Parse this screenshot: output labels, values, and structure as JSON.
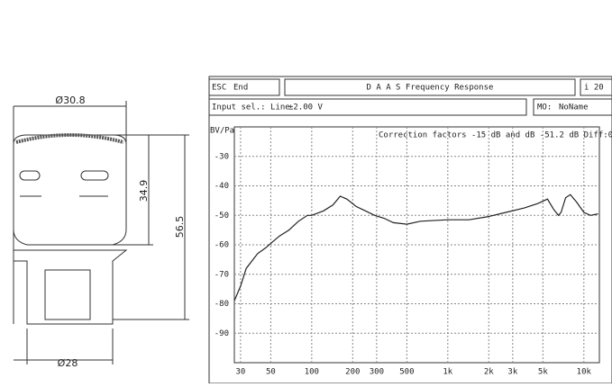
{
  "drawing": {
    "top_diameter": "Ø30.8",
    "upper_height": "34.9",
    "total_height": "56.5",
    "bottom_diameter": "Ø28"
  },
  "window": {
    "esc": "ESC",
    "esc_action": "End",
    "title": "D A A S  Frequency Response",
    "corner": "i 20",
    "input": "Input sel.: Line",
    "range": "±2.00 V",
    "mo_key": "MO:",
    "mo_value": "NoName"
  },
  "chart_data": {
    "type": "line",
    "y_label": "BV/Pa",
    "annotation": "Correction factors  -15 dB and   dB      -51.2 dB Diff:0.",
    "log_x": true,
    "grid": true,
    "color": "#222222",
    "xlim": [
      27,
      13000
    ],
    "ylim": [
      -100,
      -20
    ],
    "xticks": [
      30,
      50,
      100,
      200,
      300,
      500,
      {
        "value": 1000,
        "label": "1k"
      },
      {
        "value": 2000,
        "label": "2k"
      },
      {
        "value": 3000,
        "label": "3k"
      },
      {
        "value": 5000,
        "label": "5k"
      },
      {
        "value": 10000,
        "label": "10k"
      }
    ],
    "yticks": [
      -30,
      -40,
      -50,
      -60,
      -70,
      -80,
      -90
    ],
    "x": [
      27,
      30,
      33,
      40,
      46,
      50,
      58,
      68,
      80,
      93,
      100,
      122,
      143,
      162,
      181,
      212,
      248,
      290,
      340,
      398,
      500,
      630,
      1000,
      1430,
      1950,
      2670,
      3650,
      4600,
      5400,
      6000,
      6500,
      6800,
      7350,
      7950,
      8840,
      10000,
      11200,
      12700
    ],
    "values": [
      -79,
      -74,
      -68,
      -63,
      -61,
      -59.5,
      -57,
      -55,
      -52,
      -50,
      -50,
      -48.5,
      -46.5,
      -43.5,
      -44.5,
      -47,
      -48.5,
      -50,
      -51,
      -52.5,
      -53,
      -52,
      -51.5,
      -51.5,
      -50.5,
      -49,
      -47.5,
      -46,
      -44.5,
      -48,
      -50,
      -49,
      -44,
      -43,
      -45.5,
      -49,
      -50,
      -49.5
    ]
  }
}
